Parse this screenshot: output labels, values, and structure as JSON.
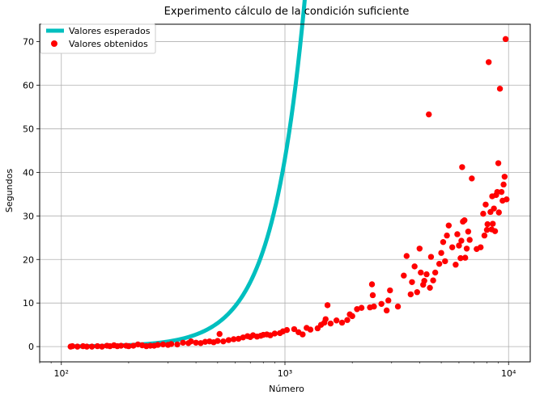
{
  "chart_data": {
    "type": "scatter",
    "title": "Experimento cálculo de la condición suficiente",
    "xlabel": "Número",
    "ylabel": "Segundos",
    "xscale": "log",
    "xlim": [
      80,
      12500
    ],
    "ylim": [
      -3.5,
      74
    ],
    "grid": true,
    "legend_position": "top-left",
    "xticks": [
      {
        "value": 100,
        "label": "10²"
      },
      {
        "value": 1000,
        "label": "10³"
      },
      {
        "value": 10000,
        "label": "10⁴"
      }
    ],
    "yticks": [
      0,
      10,
      20,
      30,
      40,
      50,
      60,
      70
    ],
    "series": [
      {
        "name": "Valores esperados",
        "kind": "line",
        "color": "#00bfbf",
        "function": "power",
        "coefficient": 4.32e-08,
        "exponent": 3.0,
        "x_range": [
          110,
          9900
        ]
      },
      {
        "name": "Valores obtenidos",
        "kind": "scatter",
        "color": "#ff0000",
        "points": [
          [
            110,
            0.0
          ],
          [
            112,
            0.1
          ],
          [
            118,
            0.0
          ],
          [
            125,
            0.1
          ],
          [
            130,
            0.0
          ],
          [
            137,
            0.0
          ],
          [
            145,
            0.1
          ],
          [
            152,
            0.0
          ],
          [
            160,
            0.2
          ],
          [
            165,
            0.1
          ],
          [
            172,
            0.3
          ],
          [
            178,
            0.1
          ],
          [
            185,
            0.2
          ],
          [
            195,
            0.2
          ],
          [
            200,
            0.1
          ],
          [
            210,
            0.2
          ],
          [
            220,
            0.5
          ],
          [
            230,
            0.3
          ],
          [
            240,
            0.1
          ],
          [
            250,
            0.2
          ],
          [
            260,
            0.2
          ],
          [
            270,
            0.4
          ],
          [
            285,
            0.5
          ],
          [
            300,
            0.4
          ],
          [
            310,
            0.6
          ],
          [
            330,
            0.5
          ],
          [
            350,
            0.9
          ],
          [
            370,
            0.8
          ],
          [
            380,
            1.2
          ],
          [
            400,
            0.9
          ],
          [
            420,
            0.8
          ],
          [
            440,
            1.1
          ],
          [
            460,
            1.2
          ],
          [
            480,
            1.0
          ],
          [
            500,
            1.3
          ],
          [
            510,
            2.9
          ],
          [
            530,
            1.2
          ],
          [
            560,
            1.5
          ],
          [
            590,
            1.7
          ],
          [
            620,
            1.8
          ],
          [
            650,
            2.1
          ],
          [
            680,
            2.4
          ],
          [
            700,
            2.2
          ],
          [
            720,
            2.6
          ],
          [
            750,
            2.3
          ],
          [
            780,
            2.5
          ],
          [
            800,
            2.7
          ],
          [
            830,
            2.8
          ],
          [
            860,
            2.6
          ],
          [
            900,
            3.0
          ],
          [
            950,
            3.1
          ],
          [
            980,
            3.5
          ],
          [
            1020,
            3.8
          ],
          [
            1100,
            4.0
          ],
          [
            1150,
            3.3
          ],
          [
            1200,
            2.8
          ],
          [
            1250,
            4.3
          ],
          [
            1300,
            3.9
          ],
          [
            1400,
            4.2
          ],
          [
            1450,
            5.0
          ],
          [
            1500,
            5.5
          ],
          [
            1520,
            6.3
          ],
          [
            1550,
            9.5
          ],
          [
            1600,
            5.3
          ],
          [
            1700,
            6.0
          ],
          [
            1800,
            5.5
          ],
          [
            1900,
            6.1
          ],
          [
            1950,
            7.4
          ],
          [
            2000,
            7.0
          ],
          [
            2100,
            8.6
          ],
          [
            2200,
            8.9
          ],
          [
            2400,
            9.0
          ],
          [
            2450,
            14.3
          ],
          [
            2470,
            11.8
          ],
          [
            2500,
            9.2
          ],
          [
            2700,
            9.8
          ],
          [
            2850,
            8.3
          ],
          [
            2900,
            10.6
          ],
          [
            2950,
            12.9
          ],
          [
            3200,
            9.2
          ],
          [
            3400,
            16.3
          ],
          [
            3500,
            20.8
          ],
          [
            3650,
            12.0
          ],
          [
            3700,
            14.8
          ],
          [
            3800,
            18.4
          ],
          [
            3900,
            12.5
          ],
          [
            4000,
            22.5
          ],
          [
            4050,
            17.0
          ],
          [
            4150,
            14.2
          ],
          [
            4200,
            15.1
          ],
          [
            4300,
            16.6
          ],
          [
            4400,
            53.3
          ],
          [
            4450,
            13.5
          ],
          [
            4500,
            20.6
          ],
          [
            4600,
            15.2
          ],
          [
            4700,
            17.0
          ],
          [
            4900,
            19.0
          ],
          [
            5000,
            21.5
          ],
          [
            5100,
            24.0
          ],
          [
            5200,
            19.6
          ],
          [
            5300,
            25.5
          ],
          [
            5400,
            27.8
          ],
          [
            5600,
            22.8
          ],
          [
            5800,
            18.8
          ],
          [
            5900,
            25.8
          ],
          [
            6000,
            23.2
          ],
          [
            6100,
            20.3
          ],
          [
            6150,
            24.3
          ],
          [
            6200,
            41.2
          ],
          [
            6250,
            28.7
          ],
          [
            6350,
            29.0
          ],
          [
            6400,
            20.4
          ],
          [
            6500,
            22.5
          ],
          [
            6600,
            26.4
          ],
          [
            6700,
            24.5
          ],
          [
            6850,
            38.6
          ],
          [
            7200,
            22.4
          ],
          [
            7500,
            22.8
          ],
          [
            7700,
            30.5
          ],
          [
            7800,
            25.5
          ],
          [
            7900,
            32.6
          ],
          [
            8000,
            26.8
          ],
          [
            8050,
            28.1
          ],
          [
            8150,
            65.3
          ],
          [
            8300,
            30.9
          ],
          [
            8400,
            26.9
          ],
          [
            8450,
            34.5
          ],
          [
            8500,
            28.2
          ],
          [
            8600,
            31.7
          ],
          [
            8700,
            26.5
          ],
          [
            8800,
            34.8
          ],
          [
            8900,
            35.5
          ],
          [
            9000,
            42.1
          ],
          [
            9050,
            30.8
          ],
          [
            9150,
            59.2
          ],
          [
            9300,
            35.5
          ],
          [
            9400,
            33.5
          ],
          [
            9500,
            37.2
          ],
          [
            9600,
            39.0
          ],
          [
            9700,
            70.6
          ],
          [
            9800,
            33.8
          ]
        ]
      }
    ]
  }
}
